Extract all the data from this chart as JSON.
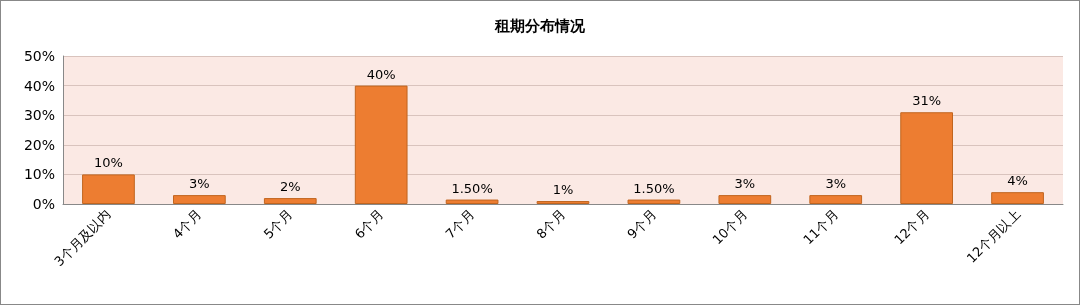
{
  "chart_data": {
    "type": "bar",
    "title": "租期分布情况",
    "categories": [
      "3个月及以内",
      "4个月",
      "5个月",
      "6个月",
      "7个月",
      "8个月",
      "9个月",
      "10个月",
      "11个月",
      "12个月",
      "12个月以上"
    ],
    "values": [
      10,
      3,
      2,
      40,
      1.5,
      1,
      1.5,
      3,
      3,
      31,
      4
    ],
    "value_labels": [
      "10%",
      "3%",
      "2%",
      "40%",
      "1.50%",
      "1%",
      "1.50%",
      "3%",
      "3%",
      "31%",
      "4%"
    ],
    "color": "#ed7d31",
    "ylim": [
      0,
      50
    ],
    "yticks": [
      {
        "value": 0,
        "label": "0%"
      },
      {
        "value": 10,
        "label": "10%"
      },
      {
        "value": 20,
        "label": "20%"
      },
      {
        "value": 30,
        "label": "30%"
      },
      {
        "value": 40,
        "label": "40%"
      },
      {
        "value": 50,
        "label": "50%"
      }
    ],
    "grid": "y"
  }
}
